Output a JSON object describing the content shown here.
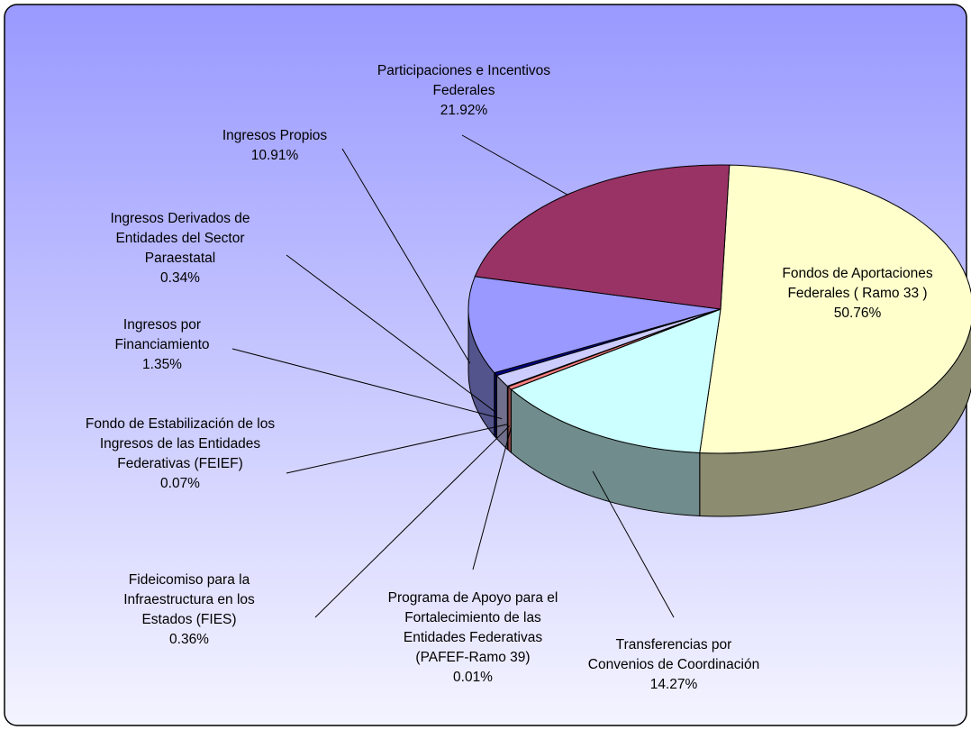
{
  "chart_data": {
    "type": "pie",
    "categories": [
      "Fondos de Aportaciones Federales ( Ramo 33 )",
      "Transferencias por Convenios de Coordinación",
      "Programa de Apoyo para el Fortalecimiento de las Entidades Federativas (PAFEF-Ramo 39)",
      "Fideicomiso para la Infraestructura en los Estados (FIES)",
      "Fondo de Estabilización de los Ingresos de las Entidades Federativas (FEIEF)",
      "Ingresos por Financiamiento",
      "Ingresos Derivados de Entidades del Sector Paraestatal",
      "Ingresos Propios",
      "Participaciones e Incentivos Federales"
    ],
    "values": [
      50.76,
      14.27,
      0.01,
      0.36,
      0.07,
      1.35,
      0.34,
      10.91,
      21.92
    ],
    "value_labels": [
      "50.76%",
      "14.27%",
      "0.01%",
      "0.36%",
      "0.07%",
      "1.35%",
      "0.34%",
      "10.91%",
      "21.92%"
    ],
    "colors": [
      "#ffffcc",
      "#ccffff",
      "#a0a0c0",
      "#ff8080",
      "#6666aa",
      "#ccccff",
      "#000080",
      "#9999ff",
      "#993366"
    ]
  }
}
